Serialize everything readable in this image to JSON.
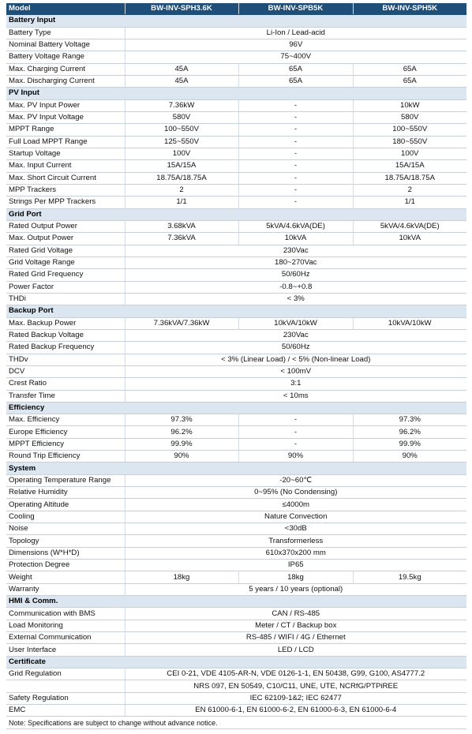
{
  "header": {
    "model": "Model",
    "a": "BW-INV-SPH3.6K",
    "b": "BW-INV-SPB5K",
    "c": "BW-INV-SPH5K"
  },
  "sections": [
    {
      "title": "Battery Input",
      "rows": [
        {
          "label": "Battery Type",
          "span": "Li-Ion / Lead-acid"
        },
        {
          "label": "Nominal Battery Voltage",
          "span": "96V"
        },
        {
          "label": "Battery Voltage Range",
          "span": "75~400V"
        },
        {
          "label": "Max. Charging Current",
          "a": "45A",
          "b": "65A",
          "c": "65A"
        },
        {
          "label": "Max. Discharging Current",
          "a": "45A",
          "b": "65A",
          "c": "65A"
        }
      ]
    },
    {
      "title": "PV Input",
      "rows": [
        {
          "label": "Max. PV Input Power",
          "a": "7.36kW",
          "b": "-",
          "c": "10kW"
        },
        {
          "label": "Max. PV Input Voltage",
          "a": "580V",
          "b": "-",
          "c": "580V"
        },
        {
          "label": "MPPT Range",
          "a": "100~550V",
          "b": "-",
          "c": "100~550V"
        },
        {
          "label": "Full Load MPPT Range",
          "a": "125~550V",
          "b": "-",
          "c": "180~550V"
        },
        {
          "label": "Startup Voltage",
          "a": "100V",
          "b": "-",
          "c": "100V"
        },
        {
          "label": "Max. Input Current",
          "a": "15A/15A",
          "b": "-",
          "c": "15A/15A"
        },
        {
          "label": "Max. Short Circuit Current",
          "a": "18.75A/18.75A",
          "b": "-",
          "c": "18.75A/18.75A"
        },
        {
          "label": "MPP Trackers",
          "a": "2",
          "b": "-",
          "c": "2"
        },
        {
          "label": "Strings Per MPP Trackers",
          "a": "1/1",
          "b": "-",
          "c": "1/1"
        }
      ]
    },
    {
      "title": "Grid Port",
      "rows": [
        {
          "label": "Rated Output Power",
          "a": "3.68kVA",
          "b": "5kVA/4.6kVA(DE)",
          "c": "5kVA/4.6kVA(DE)"
        },
        {
          "label": "Max. Output Power",
          "a": "7.36kVA",
          "b": "10kVA",
          "c": "10kVA"
        },
        {
          "label": "Rated Grid Voltage",
          "span": "230Vac"
        },
        {
          "label": "Grid Voltage Range",
          "span": "180~270Vac"
        },
        {
          "label": "Rated Grid Frequency",
          "span": "50/60Hz"
        },
        {
          "label": "Power Factor",
          "span": "-0.8~+0.8"
        },
        {
          "label": "THDi",
          "span": "< 3%"
        }
      ]
    },
    {
      "title": "Backup Port",
      "rows": [
        {
          "label": "Max. Backup Power",
          "a": "7.36kVA/7.36kW",
          "b": "10kVA/10kW",
          "c": "10kVA/10kW"
        },
        {
          "label": "Rated Backup Voltage",
          "span": "230Vac"
        },
        {
          "label": "Rated Backup Frequency",
          "span": "50/60Hz"
        },
        {
          "label": "THDv",
          "span": "< 3%        (Linear Load)    /   < 5% (Non-linear Load)"
        },
        {
          "label": "DCV",
          "span": "< 100mV"
        },
        {
          "label": "Crest Ratio",
          "span": "3:1"
        },
        {
          "label": "Transfer Time",
          "span": "< 10ms"
        }
      ]
    },
    {
      "title": "Efficiency",
      "rows": [
        {
          "label": "Max. Efficiency",
          "a": "97.3%",
          "b": "-",
          "c": "97.3%"
        },
        {
          "label": "Europe Efficiency",
          "a": "96.2%",
          "b": "-",
          "c": "96.2%"
        },
        {
          "label": "MPPT Efficiency",
          "a": "99.9%",
          "b": "-",
          "c": "99.9%"
        },
        {
          "label": "Round Trip Efficiency",
          "a": "90%",
          "b": "90%",
          "c": "90%"
        }
      ]
    },
    {
      "title": "System",
      "rows": [
        {
          "label": "Operating Temperature Range",
          "span": "-20~60℃"
        },
        {
          "label": "Relative Humidity",
          "span": "0~95%  (No Condensing)"
        },
        {
          "label": "Operating Altitude",
          "span": "≤4000m"
        },
        {
          "label": "Cooling",
          "span": "Nature Convection"
        },
        {
          "label": "Noise",
          "span": "<30dB"
        },
        {
          "label": "Topology",
          "span": "Transformerless"
        },
        {
          "label": "Dimensions (W*H*D)",
          "span": "610x370x200 mm"
        },
        {
          "label": "Protection Degree",
          "span": "IP65"
        },
        {
          "label": "Weight",
          "a": "18kg",
          "b": "18kg",
          "c": "19.5kg"
        },
        {
          "label": "Warranty",
          "span": "5 years / 10 years (optional)"
        }
      ]
    },
    {
      "title": "HMI & Comm.",
      "rows": [
        {
          "label": "Communication with BMS",
          "span": "CAN / RS-485"
        },
        {
          "label": "Load Monitoring",
          "span": "Meter / CT / Backup box"
        },
        {
          "label": "External Communication",
          "span": "RS-485 / WIFI / 4G / Ethernet"
        },
        {
          "label": "User Interface",
          "span": "LED / LCD"
        }
      ]
    },
    {
      "title": "Certificate",
      "rows": [
        {
          "label": "Grid Regulation",
          "span": "CEI 0-21, VDE 4105-AR-N, VDE 0126-1-1, EN 50438, G99, G100, AS4777.2"
        },
        {
          "label": "",
          "span": "NRS 097, EN 50549, C10/C11, UNE, UTE, NCRfG/PTPiREE"
        },
        {
          "label": "Safety Regulation",
          "span": "IEC 62109-1&2; IEC 62477"
        },
        {
          "label": "EMC",
          "span": "EN 61000-6-1, EN 61000-6-2, EN 61000-6-3, EN 61000-6-4"
        }
      ]
    }
  ],
  "note": "Note: Specifications are subject to change without advance notice.",
  "colors": {
    "header_bg": "#1f4e79",
    "section_bg": "#dbe6f1",
    "rule": "#c9cfd6"
  }
}
